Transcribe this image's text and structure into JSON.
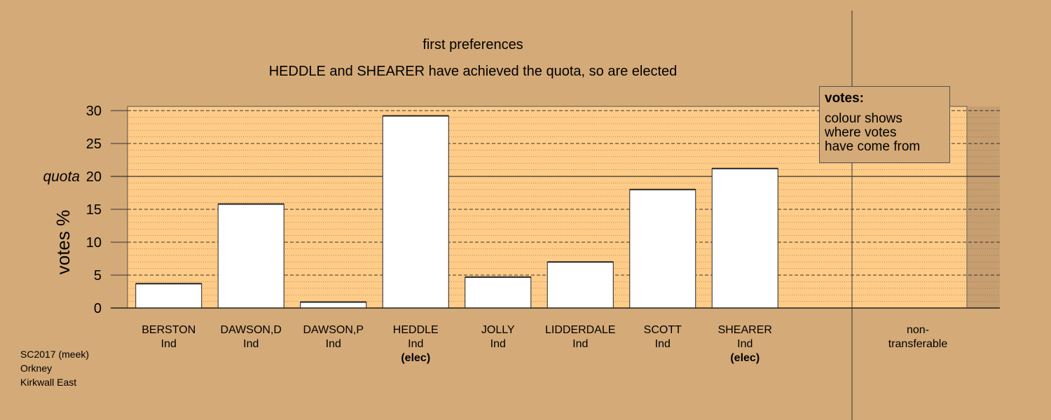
{
  "chart_data": {
    "type": "bar",
    "title": "first preferences",
    "subtitle": "HEDDLE and SHEARER have achieved the quota, so are elected",
    "ylabel": "votes %",
    "xlabel": "",
    "ylim": [
      0,
      30
    ],
    "yticks": [
      0,
      5,
      10,
      15,
      20,
      25,
      30
    ],
    "quota": 20,
    "quota_label": "quota",
    "grid": true,
    "categories": [
      {
        "name": "BERSTON",
        "party": "Ind",
        "elected": ""
      },
      {
        "name": "DAWSON,D",
        "party": "Ind",
        "elected": ""
      },
      {
        "name": "DAWSON,P",
        "party": "Ind",
        "elected": ""
      },
      {
        "name": "HEDDLE",
        "party": "Ind",
        "elected": "(elec)"
      },
      {
        "name": "JOLLY",
        "party": "Ind",
        "elected": ""
      },
      {
        "name": "LIDDERDALE",
        "party": "Ind",
        "elected": ""
      },
      {
        "name": "SCOTT",
        "party": "Ind",
        "elected": ""
      },
      {
        "name": "SHEARER",
        "party": "Ind",
        "elected": "(elec)"
      }
    ],
    "values": [
      3.7,
      15.8,
      0.9,
      29.2,
      4.7,
      7.0,
      18.0,
      21.2
    ],
    "non_transferable": {
      "label_line1": "non-",
      "label_line2": "transferable",
      "value": 0
    },
    "colors": {
      "background": "#d4aa78",
      "plot_area": "#ffcc88",
      "bar_fill": "#ffffff"
    }
  },
  "legend": {
    "title": "votes:",
    "lines": [
      "colour shows",
      "where votes",
      "have come from"
    ]
  },
  "footer": {
    "line1": "SC2017 (meek)",
    "line2": "Orkney",
    "line3": "Kirkwall East"
  }
}
